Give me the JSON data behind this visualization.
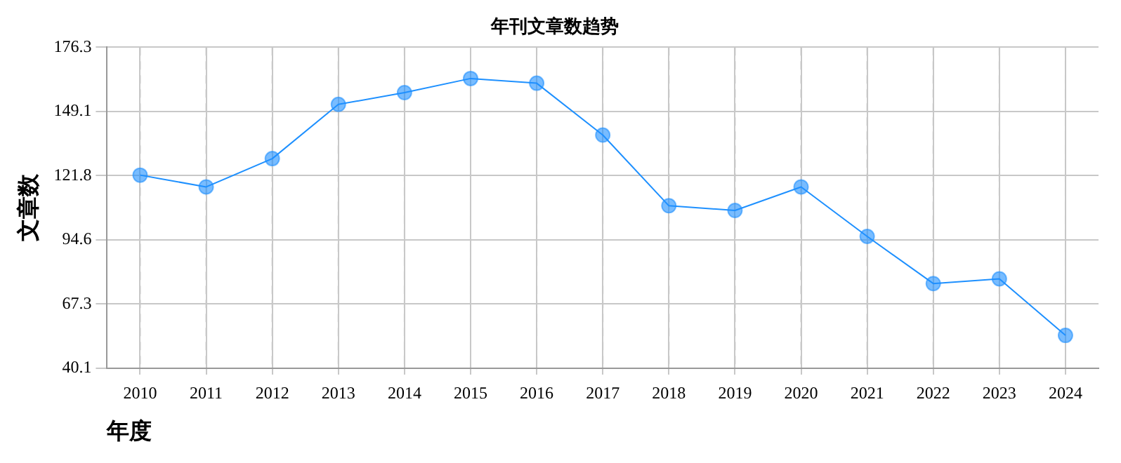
{
  "chart_data": {
    "type": "line",
    "title": "年刊文章数趋势",
    "xlabel": "年度",
    "ylabel": "文章数",
    "categories": [
      "2010",
      "2011",
      "2012",
      "2013",
      "2014",
      "2015",
      "2016",
      "2017",
      "2018",
      "2019",
      "2020",
      "2021",
      "2022",
      "2023",
      "2024"
    ],
    "series": [
      {
        "color": "#1e90ff",
        "values": [
          122,
          117,
          129,
          152,
          157,
          163,
          161,
          139,
          109,
          107,
          117,
          96,
          76,
          78,
          54
        ]
      }
    ],
    "ylim": [
      40.1,
      176.3
    ],
    "yticks": [
      40.1,
      67.3,
      94.6,
      121.8,
      149.1,
      176.3
    ],
    "grid": true,
    "marker": "circle",
    "line_style": "solid",
    "legend": false
  }
}
